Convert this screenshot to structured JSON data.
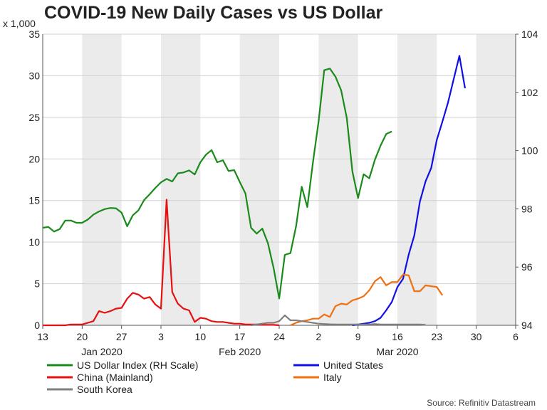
{
  "chart_data": {
    "type": "line",
    "title": "COVID-19 New Daily Cases vs US Dollar",
    "y_left_unit": "x 1,000",
    "y_left_range": [
      0,
      35
    ],
    "y_left_ticks": [
      "0",
      "5",
      "10",
      "15",
      "20",
      "25",
      "30",
      "35"
    ],
    "y_right_range": [
      94,
      104
    ],
    "y_right_ticks": [
      "94",
      "96",
      "98",
      "100",
      "102",
      "104"
    ],
    "x_day_range": [
      0,
      84
    ],
    "x_ticks": [
      {
        "day": 0,
        "label": "13"
      },
      {
        "day": 7,
        "label": "20"
      },
      {
        "day": 14,
        "label": "27"
      },
      {
        "day": 21,
        "label": "3"
      },
      {
        "day": 28,
        "label": "10"
      },
      {
        "day": 35,
        "label": "17"
      },
      {
        "day": 42,
        "label": "24"
      },
      {
        "day": 49,
        "label": "2"
      },
      {
        "day": 56,
        "label": "9"
      },
      {
        "day": 63,
        "label": "16"
      },
      {
        "day": 70,
        "label": "23"
      },
      {
        "day": 77,
        "label": "30"
      },
      {
        "day": 84,
        "label": "6"
      }
    ],
    "month_labels": [
      {
        "day": 10.5,
        "label": "Jan 2020"
      },
      {
        "day": 35,
        "label": "Feb 2020"
      },
      {
        "day": 63,
        "label": "Mar 2020"
      }
    ],
    "shaded_weeks": [
      [
        7,
        14
      ],
      [
        21,
        28
      ],
      [
        35,
        42
      ],
      [
        49,
        56
      ],
      [
        63,
        70
      ],
      [
        77,
        84
      ]
    ],
    "grid": true,
    "legend_position": "bottom",
    "series": [
      {
        "name": "US Dollar Index (RH Scale)",
        "axis": "right",
        "color": "#1a8a1a",
        "points": [
          [
            0,
            97.35
          ],
          [
            1,
            97.38
          ],
          [
            2,
            97.22
          ],
          [
            3,
            97.3
          ],
          [
            4,
            97.6
          ],
          [
            5,
            97.6
          ],
          [
            6,
            97.52
          ],
          [
            7,
            97.52
          ],
          [
            8,
            97.63
          ],
          [
            9,
            97.8
          ],
          [
            10,
            97.91
          ],
          [
            11,
            97.99
          ],
          [
            12,
            98.03
          ],
          [
            13,
            98.02
          ],
          [
            14,
            97.87
          ],
          [
            15,
            97.4
          ],
          [
            16,
            97.78
          ],
          [
            17,
            97.95
          ],
          [
            18,
            98.3
          ],
          [
            19,
            98.5
          ],
          [
            20,
            98.72
          ],
          [
            21,
            98.91
          ],
          [
            22,
            99.03
          ],
          [
            23,
            98.94
          ],
          [
            24,
            99.22
          ],
          [
            25,
            99.25
          ],
          [
            26,
            99.32
          ],
          [
            27,
            99.18
          ],
          [
            28,
            99.6
          ],
          [
            29,
            99.86
          ],
          [
            30,
            100.02
          ],
          [
            31,
            99.6
          ],
          [
            32,
            99.67
          ],
          [
            33,
            99.3
          ],
          [
            34,
            99.33
          ],
          [
            35,
            98.92
          ],
          [
            36,
            98.53
          ],
          [
            37,
            97.35
          ],
          [
            38,
            97.15
          ],
          [
            39,
            97.32
          ],
          [
            40,
            96.82
          ],
          [
            41,
            95.97
          ],
          [
            42,
            94.92
          ],
          [
            43,
            96.42
          ],
          [
            44,
            96.48
          ],
          [
            45,
            97.4
          ],
          [
            46,
            98.76
          ],
          [
            47,
            98.06
          ],
          [
            48,
            99.6
          ],
          [
            49,
            101.0
          ],
          [
            50,
            102.76
          ],
          [
            51,
            102.82
          ],
          [
            52,
            102.54
          ],
          [
            53,
            102.07
          ],
          [
            54,
            101.12
          ],
          [
            55,
            99.28
          ],
          [
            56,
            98.37
          ],
          [
            57,
            99.19
          ],
          [
            58,
            99.05
          ],
          [
            59,
            99.69
          ],
          [
            60,
            100.17
          ],
          [
            61,
            100.57
          ],
          [
            62,
            100.66
          ]
        ]
      },
      {
        "name": "United States",
        "axis": "left",
        "color": "#1010e6",
        "points": [
          [
            55,
            0
          ],
          [
            56,
            0.1
          ],
          [
            57,
            0.2
          ],
          [
            58,
            0.3
          ],
          [
            59,
            0.5
          ],
          [
            60,
            0.9
          ],
          [
            61,
            1.8
          ],
          [
            62,
            2.8
          ],
          [
            63,
            4.6
          ],
          [
            64,
            5.6
          ],
          [
            65,
            8.5
          ],
          [
            66,
            10.8
          ],
          [
            67,
            14.9
          ],
          [
            68,
            17.3
          ],
          [
            69,
            18.9
          ],
          [
            70,
            22.3
          ],
          [
            71,
            24.5
          ],
          [
            72,
            26.8
          ],
          [
            73,
            29.6
          ],
          [
            74,
            32.4
          ],
          [
            75,
            28.5
          ]
        ]
      },
      {
        "name": "China (Mainland)",
        "axis": "left",
        "color": "#e61010",
        "points": [
          [
            0,
            0
          ],
          [
            1,
            0
          ],
          [
            2,
            0
          ],
          [
            3,
            0
          ],
          [
            4,
            0
          ],
          [
            5,
            0.1
          ],
          [
            6,
            0.1
          ],
          [
            7,
            0.1
          ],
          [
            8,
            0.3
          ],
          [
            9,
            0.5
          ],
          [
            10,
            1.7
          ],
          [
            11,
            1.5
          ],
          [
            12,
            1.7
          ],
          [
            13,
            2.0
          ],
          [
            14,
            2.1
          ],
          [
            15,
            3.2
          ],
          [
            16,
            3.9
          ],
          [
            17,
            3.7
          ],
          [
            18,
            3.2
          ],
          [
            19,
            3.4
          ],
          [
            20,
            2.5
          ],
          [
            21,
            2.0
          ],
          [
            22,
            15.1
          ],
          [
            23,
            4.0
          ],
          [
            24,
            2.6
          ],
          [
            25,
            2.0
          ],
          [
            26,
            1.8
          ],
          [
            27,
            0.4
          ],
          [
            28,
            0.9
          ],
          [
            29,
            0.8
          ],
          [
            30,
            0.5
          ],
          [
            31,
            0.4
          ],
          [
            32,
            0.4
          ],
          [
            33,
            0.3
          ],
          [
            34,
            0.2
          ],
          [
            35,
            0.2
          ],
          [
            36,
            0.1
          ],
          [
            37,
            0.1
          ],
          [
            38,
            0.1
          ],
          [
            39,
            0.05
          ],
          [
            40,
            0.05
          ],
          [
            41,
            0.05
          ],
          [
            42,
            0
          ]
        ]
      },
      {
        "name": "Italy",
        "axis": "left",
        "color": "#f07010",
        "points": [
          [
            44,
            0
          ],
          [
            45,
            0.3
          ],
          [
            46,
            0.5
          ],
          [
            47,
            0.6
          ],
          [
            48,
            0.8
          ],
          [
            49,
            0.8
          ],
          [
            50,
            1.3
          ],
          [
            51,
            1.0
          ],
          [
            52,
            2.3
          ],
          [
            53,
            2.6
          ],
          [
            54,
            2.5
          ],
          [
            55,
            3.0
          ],
          [
            56,
            3.2
          ],
          [
            57,
            3.5
          ],
          [
            58,
            4.2
          ],
          [
            59,
            5.3
          ],
          [
            60,
            5.8
          ],
          [
            61,
            4.8
          ],
          [
            62,
            5.2
          ],
          [
            63,
            5.2
          ],
          [
            64,
            6.1
          ],
          [
            65,
            6.0
          ],
          [
            66,
            4.1
          ],
          [
            67,
            4.1
          ],
          [
            68,
            4.8
          ],
          [
            69,
            4.7
          ],
          [
            70,
            4.6
          ],
          [
            71,
            3.6
          ]
        ]
      },
      {
        "name": "South Korea",
        "axis": "left",
        "color": "#808080",
        "points": [
          [
            37,
            0
          ],
          [
            38,
            0.1
          ],
          [
            39,
            0.2
          ],
          [
            40,
            0.3
          ],
          [
            41,
            0.3
          ],
          [
            42,
            0.5
          ],
          [
            43,
            1.2
          ],
          [
            44,
            0.6
          ],
          [
            45,
            0.6
          ],
          [
            46,
            0.5
          ],
          [
            47,
            0.4
          ],
          [
            48,
            0.3
          ],
          [
            49,
            0.2
          ],
          [
            50,
            0.15
          ],
          [
            51,
            0.12
          ],
          [
            52,
            0.1
          ],
          [
            53,
            0.1
          ],
          [
            54,
            0.1
          ],
          [
            55,
            0.1
          ],
          [
            56,
            0.1
          ],
          [
            57,
            0.1
          ],
          [
            58,
            0.1
          ],
          [
            59,
            0.15
          ],
          [
            60,
            0.1
          ],
          [
            61,
            0.1
          ],
          [
            62,
            0.1
          ],
          [
            63,
            0.1
          ],
          [
            64,
            0.1
          ],
          [
            65,
            0.1
          ],
          [
            66,
            0.1
          ],
          [
            67,
            0.1
          ],
          [
            68,
            0.05
          ]
        ]
      }
    ],
    "source": "Source: Refinitiv Datastream"
  }
}
